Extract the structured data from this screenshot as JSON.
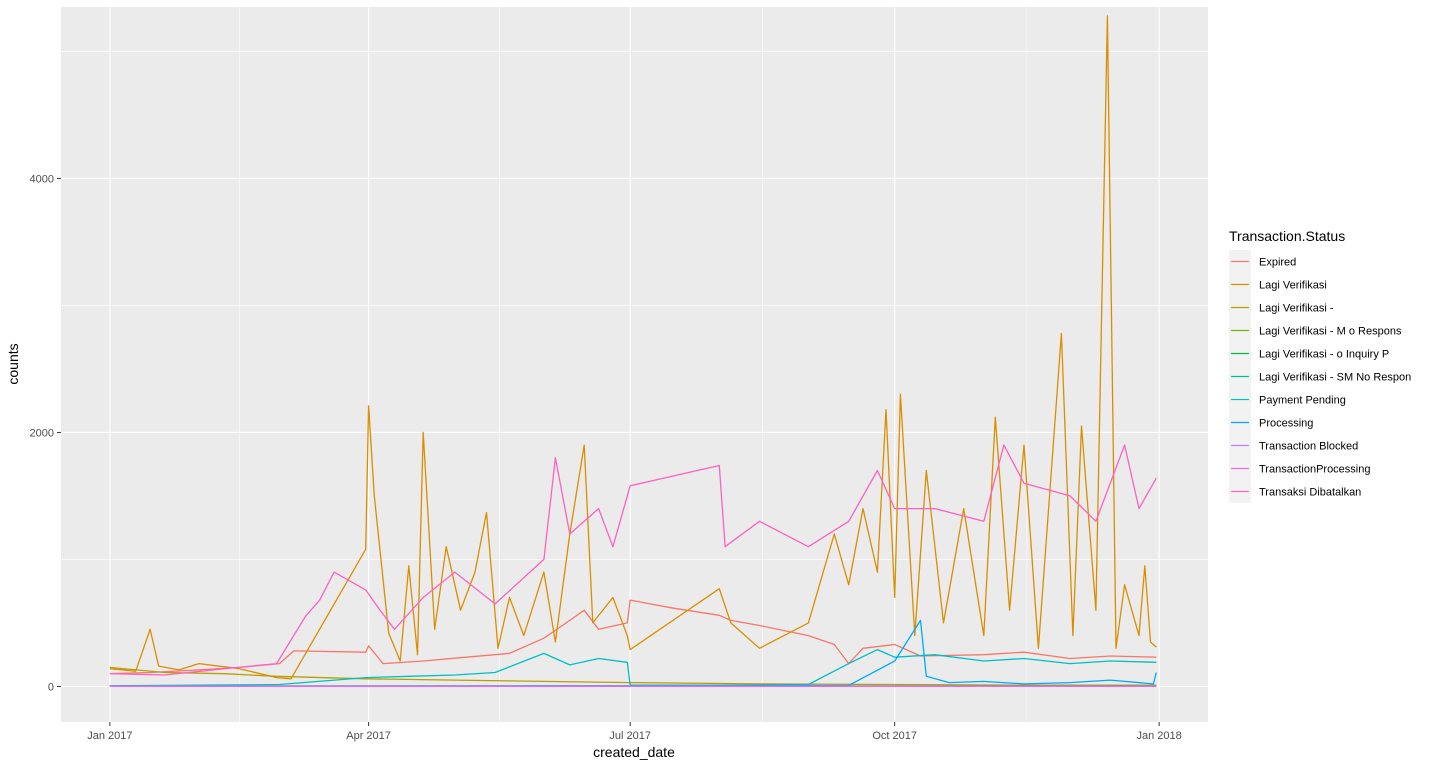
{
  "chart_data": {
    "type": "line",
    "xlabel": "created_date",
    "ylabel": "counts",
    "x_domain": [
      "2016-12-15",
      "2018-01-18"
    ],
    "ylim": [
      -280,
      5350
    ],
    "x_ticks": [
      {
        "label": "Jan 2017",
        "date": "2017-01-01"
      },
      {
        "label": "Apr 2017",
        "date": "2017-04-01"
      },
      {
        "label": "Jul 2017",
        "date": "2017-07-01"
      },
      {
        "label": "Oct 2017",
        "date": "2017-10-01"
      },
      {
        "label": "Jan 2018",
        "date": "2018-01-01"
      }
    ],
    "y_ticks": [
      0,
      2000,
      4000
    ],
    "legend": {
      "title": "Transaction.Status",
      "position": "right"
    },
    "series": [
      {
        "name": "Expired",
        "color": "#F8766D",
        "points": [
          [
            "2017-01-01",
            100
          ],
          [
            "2017-01-15",
            110
          ],
          [
            "2017-02-01",
            130
          ],
          [
            "2017-02-15",
            150
          ],
          [
            "2017-03-01",
            180
          ],
          [
            "2017-03-06",
            280
          ],
          [
            "2017-03-31",
            270
          ],
          [
            "2017-04-01",
            320
          ],
          [
            "2017-04-06",
            180
          ],
          [
            "2017-04-20",
            200
          ],
          [
            "2017-05-05",
            230
          ],
          [
            "2017-05-20",
            260
          ],
          [
            "2017-06-01",
            380
          ],
          [
            "2017-06-10",
            520
          ],
          [
            "2017-06-15",
            600
          ],
          [
            "2017-06-20",
            450
          ],
          [
            "2017-06-30",
            500
          ],
          [
            "2017-07-01",
            680
          ],
          [
            "2017-07-15",
            620
          ],
          [
            "2017-08-01",
            560
          ],
          [
            "2017-08-05",
            520
          ],
          [
            "2017-08-15",
            480
          ],
          [
            "2017-09-01",
            400
          ],
          [
            "2017-09-10",
            330
          ],
          [
            "2017-09-15",
            180
          ],
          [
            "2017-09-20",
            300
          ],
          [
            "2017-10-01",
            330
          ],
          [
            "2017-10-10",
            240
          ],
          [
            "2017-11-01",
            250
          ],
          [
            "2017-11-15",
            270
          ],
          [
            "2017-12-01",
            220
          ],
          [
            "2017-12-15",
            240
          ],
          [
            "2017-12-31",
            230
          ]
        ]
      },
      {
        "name": "Lagi Verifikasi",
        "color": "#DB8E00",
        "points": [
          [
            "2017-01-01",
            140
          ],
          [
            "2017-01-10",
            120
          ],
          [
            "2017-01-15",
            450
          ],
          [
            "2017-01-18",
            160
          ],
          [
            "2017-01-25",
            130
          ],
          [
            "2017-02-01",
            180
          ],
          [
            "2017-02-15",
            140
          ],
          [
            "2017-02-28",
            70
          ],
          [
            "2017-03-05",
            60
          ],
          [
            "2017-03-31",
            1080
          ],
          [
            "2017-04-01",
            2210
          ],
          [
            "2017-04-03",
            1500
          ],
          [
            "2017-04-08",
            420
          ],
          [
            "2017-04-12",
            200
          ],
          [
            "2017-04-15",
            950
          ],
          [
            "2017-04-18",
            250
          ],
          [
            "2017-04-20",
            2000
          ],
          [
            "2017-04-24",
            450
          ],
          [
            "2017-04-28",
            1100
          ],
          [
            "2017-05-03",
            600
          ],
          [
            "2017-05-08",
            900
          ],
          [
            "2017-05-12",
            1370
          ],
          [
            "2017-05-16",
            300
          ],
          [
            "2017-05-20",
            700
          ],
          [
            "2017-05-25",
            400
          ],
          [
            "2017-06-01",
            900
          ],
          [
            "2017-06-05",
            350
          ],
          [
            "2017-06-10",
            1200
          ],
          [
            "2017-06-15",
            1900
          ],
          [
            "2017-06-18",
            500
          ],
          [
            "2017-06-25",
            700
          ],
          [
            "2017-06-30",
            400
          ],
          [
            "2017-07-01",
            290
          ],
          [
            "2017-08-01",
            770
          ],
          [
            "2017-08-05",
            500
          ],
          [
            "2017-08-15",
            300
          ],
          [
            "2017-09-01",
            500
          ],
          [
            "2017-09-10",
            1200
          ],
          [
            "2017-09-15",
            800
          ],
          [
            "2017-09-20",
            1400
          ],
          [
            "2017-09-25",
            900
          ],
          [
            "2017-09-28",
            2180
          ],
          [
            "2017-10-01",
            700
          ],
          [
            "2017-10-03",
            2300
          ],
          [
            "2017-10-08",
            400
          ],
          [
            "2017-10-12",
            1700
          ],
          [
            "2017-10-18",
            500
          ],
          [
            "2017-10-25",
            1400
          ],
          [
            "2017-11-01",
            400
          ],
          [
            "2017-11-05",
            2120
          ],
          [
            "2017-11-10",
            600
          ],
          [
            "2017-11-15",
            1900
          ],
          [
            "2017-11-20",
            300
          ],
          [
            "2017-11-28",
            2780
          ],
          [
            "2017-12-02",
            400
          ],
          [
            "2017-12-05",
            2050
          ],
          [
            "2017-12-10",
            600
          ],
          [
            "2017-12-14",
            5280
          ],
          [
            "2017-12-17",
            300
          ],
          [
            "2017-12-20",
            800
          ],
          [
            "2017-12-25",
            400
          ],
          [
            "2017-12-27",
            950
          ],
          [
            "2017-12-29",
            350
          ],
          [
            "2017-12-31",
            310
          ]
        ]
      },
      {
        "name": "Lagi Verifikasi -",
        "color": "#B79F00",
        "points": [
          [
            "2017-01-01",
            150
          ],
          [
            "2017-01-20",
            110
          ],
          [
            "2017-02-10",
            100
          ],
          [
            "2017-02-28",
            80
          ],
          [
            "2017-03-31",
            60
          ],
          [
            "2017-05-01",
            50
          ],
          [
            "2017-06-01",
            40
          ],
          [
            "2017-07-01",
            30
          ],
          [
            "2017-08-15",
            20
          ],
          [
            "2017-10-01",
            15
          ],
          [
            "2017-11-15",
            10
          ],
          [
            "2017-12-31",
            10
          ]
        ]
      },
      {
        "name": "Lagi Verifikasi - M o Respons",
        "color": "#7CAE00",
        "points": [
          [
            "2017-01-01",
            2
          ],
          [
            "2017-12-31",
            2
          ]
        ]
      },
      {
        "name": "Lagi Verifikasi - o Inquiry P",
        "color": "#00BA38",
        "points": [
          [
            "2017-01-01",
            3
          ],
          [
            "2017-12-31",
            3
          ]
        ]
      },
      {
        "name": "Lagi Verifikasi - SM No Respon",
        "color": "#00C08B",
        "points": [
          [
            "2017-01-01",
            4
          ],
          [
            "2017-12-31",
            4
          ]
        ]
      },
      {
        "name": "Payment Pending",
        "color": "#00BFC4",
        "points": [
          [
            "2017-01-01",
            5
          ],
          [
            "2017-02-01",
            10
          ],
          [
            "2017-03-01",
            15
          ],
          [
            "2017-03-31",
            70
          ],
          [
            "2017-04-15",
            80
          ],
          [
            "2017-05-01",
            90
          ],
          [
            "2017-05-15",
            110
          ],
          [
            "2017-06-01",
            260
          ],
          [
            "2017-06-10",
            170
          ],
          [
            "2017-06-20",
            220
          ],
          [
            "2017-06-30",
            190
          ],
          [
            "2017-07-01",
            10
          ],
          [
            "2017-08-01",
            10
          ],
          [
            "2017-09-01",
            15
          ],
          [
            "2017-09-15",
            180
          ],
          [
            "2017-09-25",
            290
          ],
          [
            "2017-10-01",
            230
          ],
          [
            "2017-10-15",
            250
          ],
          [
            "2017-11-01",
            200
          ],
          [
            "2017-11-15",
            220
          ],
          [
            "2017-12-01",
            180
          ],
          [
            "2017-12-15",
            200
          ],
          [
            "2017-12-31",
            190
          ]
        ]
      },
      {
        "name": "Processing",
        "color": "#00A9FF",
        "points": [
          [
            "2017-01-01",
            2
          ],
          [
            "2017-03-01",
            3
          ],
          [
            "2017-06-01",
            5
          ],
          [
            "2017-08-01",
            5
          ],
          [
            "2017-09-15",
            8
          ],
          [
            "2017-10-01",
            200
          ],
          [
            "2017-10-10",
            520
          ],
          [
            "2017-10-12",
            80
          ],
          [
            "2017-10-20",
            30
          ],
          [
            "2017-11-01",
            40
          ],
          [
            "2017-11-15",
            20
          ],
          [
            "2017-12-01",
            30
          ],
          [
            "2017-12-15",
            50
          ],
          [
            "2017-12-30",
            20
          ],
          [
            "2017-12-31",
            110
          ]
        ]
      },
      {
        "name": "Transaction Blocked",
        "color": "#C77CFF",
        "points": [
          [
            "2017-01-01",
            1
          ],
          [
            "2017-12-31",
            1
          ]
        ]
      },
      {
        "name": "TransactionProcessing",
        "color": "#ED68ED",
        "points": [
          [
            "2017-01-01",
            1
          ],
          [
            "2017-12-31",
            1
          ]
        ]
      },
      {
        "name": "Transaksi Dibatalkan",
        "color": "#FF61C3",
        "points": [
          [
            "2017-01-01",
            100
          ],
          [
            "2017-01-20",
            90
          ],
          [
            "2017-02-10",
            140
          ],
          [
            "2017-02-28",
            180
          ],
          [
            "2017-03-10",
            550
          ],
          [
            "2017-03-15",
            680
          ],
          [
            "2017-03-20",
            900
          ],
          [
            "2017-03-31",
            760
          ],
          [
            "2017-04-05",
            600
          ],
          [
            "2017-04-10",
            450
          ],
          [
            "2017-04-20",
            700
          ],
          [
            "2017-05-01",
            900
          ],
          [
            "2017-05-15",
            650
          ],
          [
            "2017-06-01",
            1000
          ],
          [
            "2017-06-05",
            1800
          ],
          [
            "2017-06-10",
            1200
          ],
          [
            "2017-06-20",
            1400
          ],
          [
            "2017-06-25",
            1100
          ],
          [
            "2017-07-01",
            1580
          ],
          [
            "2017-08-01",
            1740
          ],
          [
            "2017-08-03",
            1100
          ],
          [
            "2017-08-15",
            1300
          ],
          [
            "2017-09-01",
            1100
          ],
          [
            "2017-09-15",
            1300
          ],
          [
            "2017-09-25",
            1700
          ],
          [
            "2017-10-01",
            1400
          ],
          [
            "2017-10-15",
            1400
          ],
          [
            "2017-11-01",
            1300
          ],
          [
            "2017-11-08",
            1900
          ],
          [
            "2017-11-15",
            1600
          ],
          [
            "2017-12-01",
            1500
          ],
          [
            "2017-12-10",
            1300
          ],
          [
            "2017-12-20",
            1900
          ],
          [
            "2017-12-25",
            1400
          ],
          [
            "2017-12-31",
            1640
          ]
        ]
      }
    ]
  }
}
